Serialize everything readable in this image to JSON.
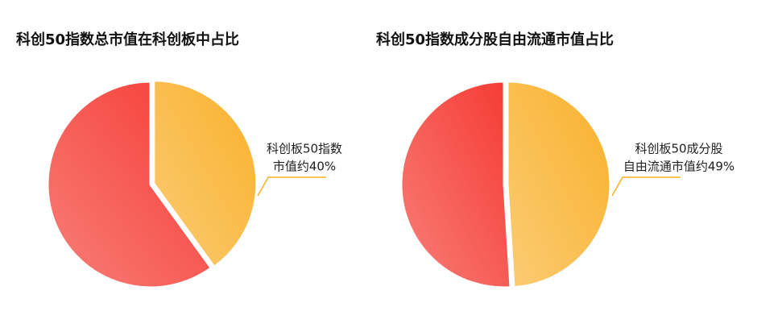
{
  "chart_data": [
    {
      "type": "pie",
      "title": "科创50指数总市值在科创板中占比",
      "values": [
        40,
        60
      ],
      "value_labels": [
        [
          "科创板50指数",
          "市值约40%"
        ],
        null
      ],
      "colors": [
        "#f9b02a",
        "#f53a32"
      ]
    },
    {
      "type": "pie",
      "title": "科创50指数成分股自由流通市值占比",
      "values": [
        49,
        51
      ],
      "value_labels": [
        [
          "科创板50成分股",
          "自由流通市值约49%"
        ],
        null
      ],
      "colors": [
        "#f9b02a",
        "#f53a32"
      ]
    }
  ]
}
